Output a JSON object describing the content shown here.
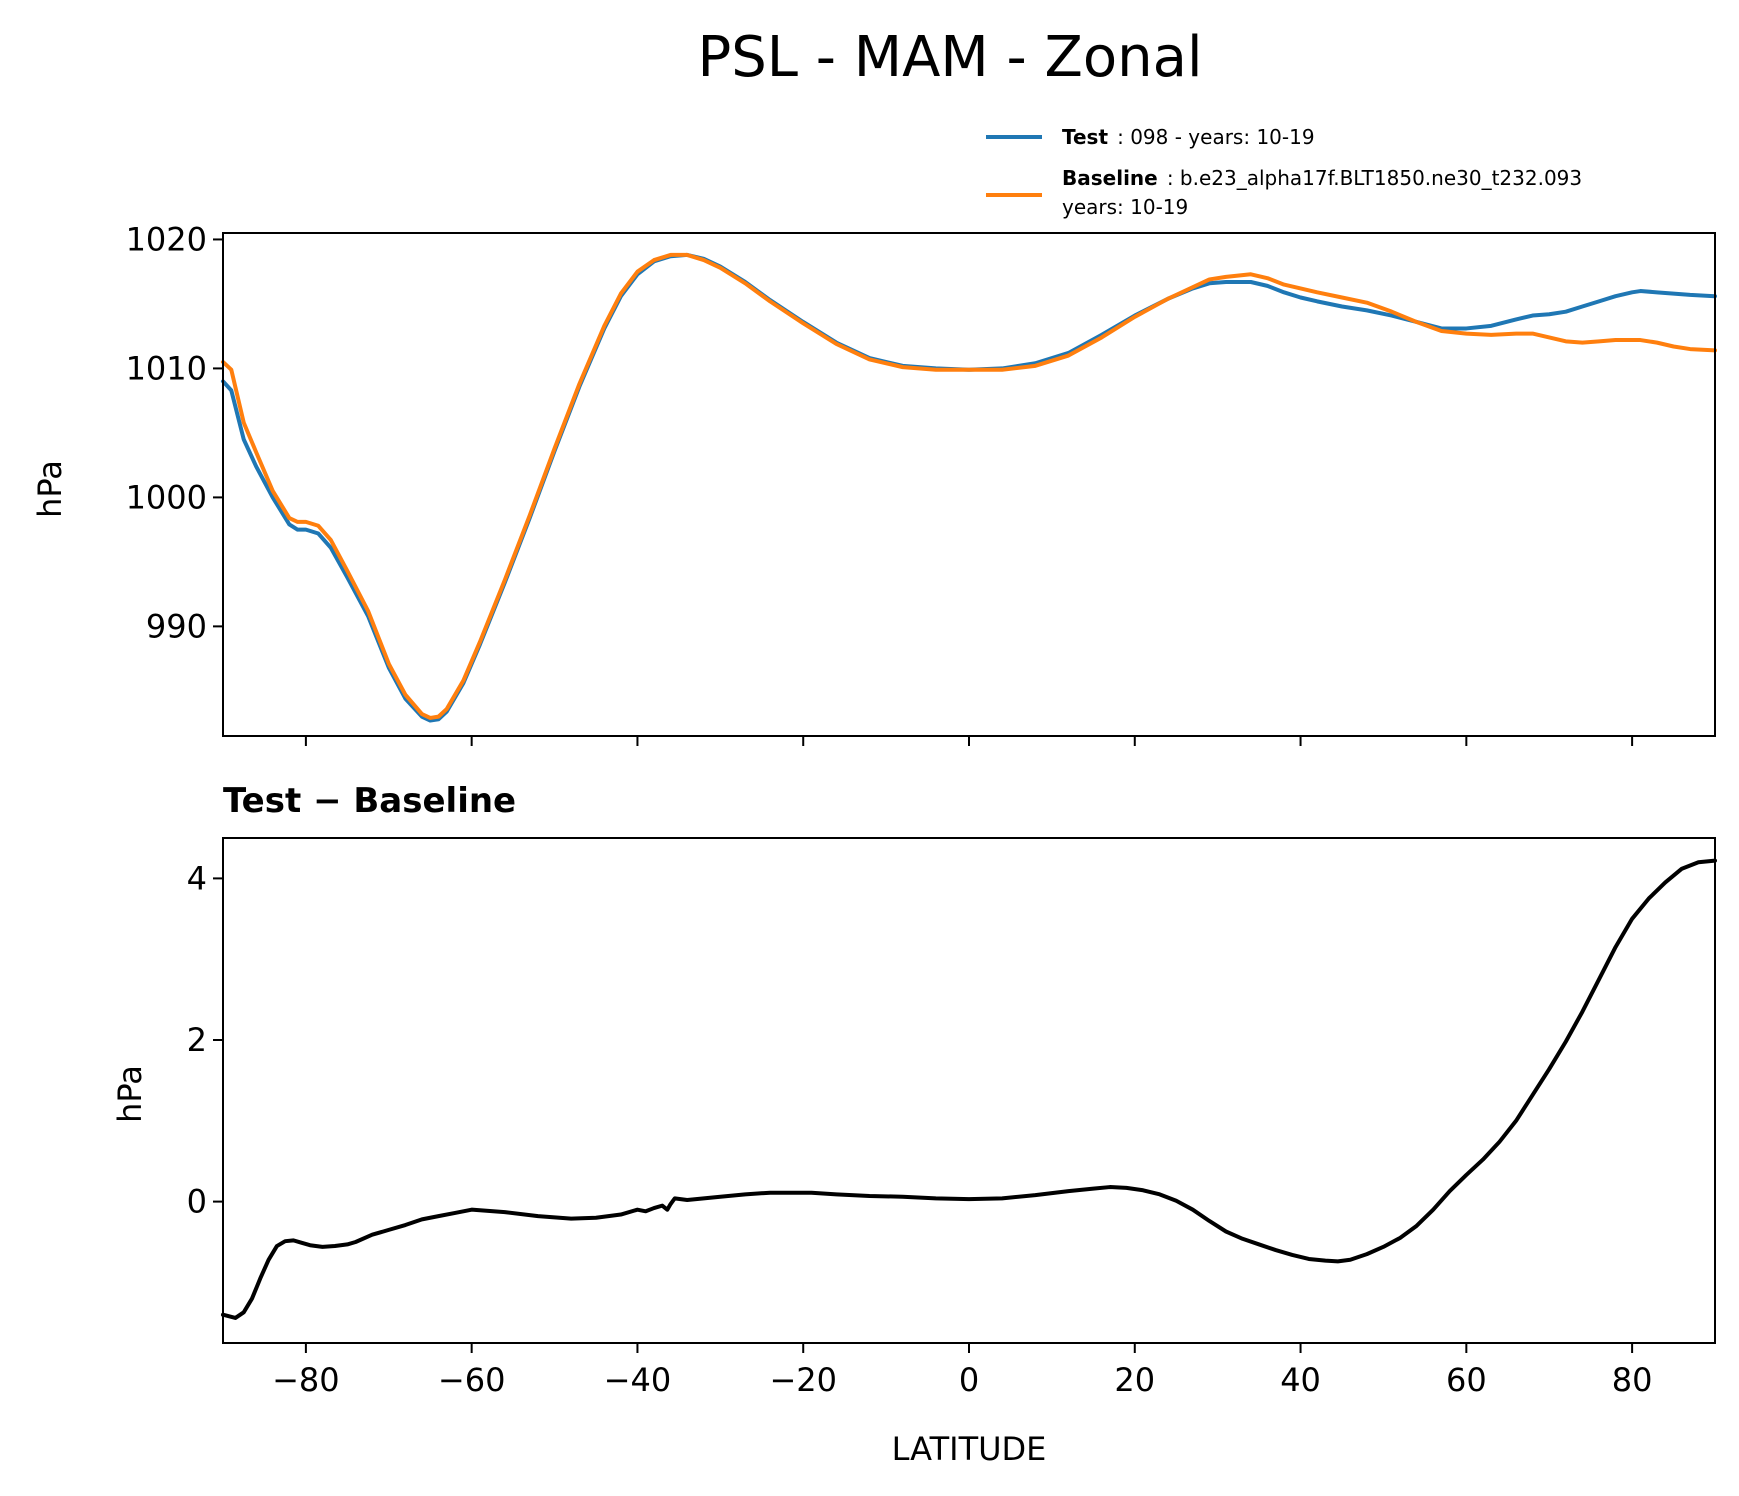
{
  "chart_data": [
    {
      "type": "line",
      "title": "PSL - MAM - Zonal",
      "xlabel": "",
      "ylabel": "hPa",
      "xlim": [
        -90,
        90
      ],
      "ylim": [
        981.5,
        1020.5
      ],
      "yticks": [
        990,
        1000,
        1010,
        1020
      ],
      "ytick_labels": [
        "990",
        "1000",
        "1010",
        "1020"
      ],
      "xticks": [
        -80,
        -60,
        -40,
        -20,
        0,
        20,
        40,
        60,
        80
      ],
      "legend": {
        "placement": "above-top-right",
        "entries": [
          {
            "bold": "Test",
            "text": ": 098 - years: 10-19",
            "text2": ""
          },
          {
            "bold": "Baseline",
            "text": ": b.e23_alpha17f.BLT1850.ne30_t232.093",
            "text2": "years: 10-19"
          }
        ]
      },
      "series": [
        {
          "name": "Test",
          "color": "#1f77b4",
          "x": [
            -90,
            -89,
            -87.5,
            -86,
            -84,
            -82,
            -81,
            -80,
            -78.5,
            -77,
            -75,
            -72.5,
            -70,
            -68,
            -66,
            -65,
            -64,
            -63,
            -61,
            -59,
            -56,
            -53,
            -50,
            -47,
            -44,
            -42,
            -40,
            -38,
            -36,
            -34,
            -32,
            -30,
            -27,
            -24,
            -20,
            -16,
            -12,
            -8,
            -4,
            0,
            4,
            8,
            12,
            16,
            20,
            24,
            27,
            29,
            31,
            34,
            36,
            38,
            40,
            42,
            45,
            48,
            51,
            54,
            57,
            60,
            63,
            66,
            68,
            70,
            72,
            74,
            76,
            78,
            80,
            81,
            83,
            85,
            87,
            90
          ],
          "values": [
            1009.0,
            1008.3,
            1004.5,
            1002.4,
            1000.0,
            997.9,
            997.5,
            997.5,
            997.2,
            996.1,
            993.8,
            990.8,
            986.8,
            984.4,
            983.0,
            982.7,
            982.8,
            983.4,
            985.6,
            988.6,
            993.4,
            998.4,
            1003.6,
            1008.6,
            1013.1,
            1015.6,
            1017.3,
            1018.3,
            1018.7,
            1018.8,
            1018.5,
            1017.9,
            1016.7,
            1015.3,
            1013.6,
            1012.0,
            1010.8,
            1010.2,
            1010.0,
            1009.9,
            1010.0,
            1010.4,
            1011.2,
            1012.6,
            1014.1,
            1015.4,
            1016.2,
            1016.6,
            1016.7,
            1016.7,
            1016.4,
            1015.9,
            1015.5,
            1015.2,
            1014.8,
            1014.5,
            1014.1,
            1013.6,
            1013.1,
            1013.1,
            1013.3,
            1013.8,
            1014.1,
            1014.2,
            1014.4,
            1014.8,
            1015.2,
            1015.6,
            1015.9,
            1016.0,
            1015.9,
            1015.8,
            1015.7,
            1015.6
          ]
        },
        {
          "name": "Baseline",
          "color": "#ff7f0e",
          "x": [
            -90,
            -89,
            -87.5,
            -86,
            -84,
            -82,
            -81,
            -80,
            -78.5,
            -77,
            -75,
            -72.5,
            -70,
            -68,
            -66,
            -65,
            -64,
            -63,
            -61,
            -59,
            -56,
            -53,
            -50,
            -47,
            -44,
            -42,
            -40,
            -38,
            -36,
            -34,
            -32,
            -30,
            -27,
            -24,
            -20,
            -16,
            -12,
            -8,
            -4,
            0,
            4,
            8,
            12,
            16,
            20,
            24,
            27,
            29,
            31,
            34,
            36,
            38,
            40,
            42,
            45,
            48,
            51,
            54,
            57,
            60,
            63,
            66,
            68,
            70,
            72,
            74,
            76,
            78,
            80,
            81,
            83,
            85,
            87,
            90
          ],
          "values": [
            1010.5,
            1009.9,
            1005.8,
            1003.5,
            1000.5,
            998.4,
            998.1,
            998.1,
            997.8,
            996.7,
            994.3,
            991.2,
            987.1,
            984.7,
            983.2,
            982.9,
            983.0,
            983.6,
            985.8,
            988.8,
            993.6,
            998.6,
            1003.8,
            1008.8,
            1013.3,
            1015.8,
            1017.5,
            1018.4,
            1018.8,
            1018.8,
            1018.4,
            1017.8,
            1016.6,
            1015.2,
            1013.5,
            1011.9,
            1010.7,
            1010.1,
            1009.9,
            1009.9,
            1009.9,
            1010.2,
            1011.0,
            1012.4,
            1014.0,
            1015.4,
            1016.3,
            1016.9,
            1017.1,
            1017.3,
            1017.0,
            1016.5,
            1016.2,
            1015.9,
            1015.5,
            1015.1,
            1014.4,
            1013.6,
            1012.9,
            1012.7,
            1012.6,
            1012.7,
            1012.7,
            1012.4,
            1012.1,
            1012.0,
            1012.1,
            1012.2,
            1012.2,
            1012.2,
            1012.0,
            1011.7,
            1011.5,
            1011.4
          ]
        }
      ]
    },
    {
      "type": "line",
      "title": "Test − Baseline",
      "xlabel": "LATITUDE",
      "ylabel": "hPa",
      "xlim": [
        -90,
        90
      ],
      "ylim": [
        -1.75,
        4.5
      ],
      "yticks": [
        0,
        2,
        4
      ],
      "ytick_labels": [
        "0",
        "2",
        "4"
      ],
      "xticks": [
        -80,
        -60,
        -40,
        -20,
        0,
        20,
        40,
        60,
        80
      ],
      "xtick_labels": [
        "−80",
        "−60",
        "−40",
        "−20",
        "0",
        "20",
        "40",
        "60",
        "80"
      ],
      "series": [
        {
          "name": "Test − Baseline",
          "color": "#000000",
          "x": [
            -90,
            -88.5,
            -87.5,
            -86.5,
            -85.5,
            -84.5,
            -83.5,
            -82.5,
            -81.5,
            -80.5,
            -79.5,
            -78,
            -76.5,
            -75,
            -74,
            -72,
            -70,
            -68,
            -66,
            -64,
            -62,
            -60,
            -56,
            -52,
            -48,
            -45,
            -42,
            -40,
            -39,
            -38,
            -37,
            -36.4,
            -36,
            -35.5,
            -34,
            -32,
            -30,
            -27,
            -24,
            -21,
            -19,
            -16,
            -12,
            -8,
            -4,
            0,
            4,
            8,
            12,
            15,
            17,
            19,
            21,
            23,
            25,
            27,
            29,
            31,
            33,
            35,
            37,
            39,
            41,
            43,
            44.5,
            46,
            48,
            50,
            52,
            54,
            56,
            58,
            60,
            62,
            64,
            66,
            68,
            70,
            72,
            74,
            76,
            78,
            80,
            82,
            84,
            86,
            88,
            90
          ],
          "values": [
            -1.4,
            -1.44,
            -1.37,
            -1.2,
            -0.95,
            -0.72,
            -0.55,
            -0.49,
            -0.48,
            -0.51,
            -0.54,
            -0.56,
            -0.55,
            -0.53,
            -0.5,
            -0.41,
            -0.35,
            -0.29,
            -0.22,
            -0.18,
            -0.14,
            -0.1,
            -0.13,
            -0.18,
            -0.21,
            -0.2,
            -0.16,
            -0.1,
            -0.12,
            -0.08,
            -0.05,
            -0.1,
            -0.03,
            0.04,
            0.02,
            0.04,
            0.06,
            0.09,
            0.11,
            0.11,
            0.11,
            0.09,
            0.07,
            0.06,
            0.04,
            0.03,
            0.04,
            0.08,
            0.13,
            0.16,
            0.18,
            0.17,
            0.14,
            0.09,
            0.01,
            -0.1,
            -0.24,
            -0.37,
            -0.46,
            -0.53,
            -0.6,
            -0.66,
            -0.71,
            -0.73,
            -0.74,
            -0.72,
            -0.65,
            -0.56,
            -0.45,
            -0.3,
            -0.1,
            0.13,
            0.33,
            0.52,
            0.74,
            1.0,
            1.32,
            1.64,
            1.98,
            2.35,
            2.75,
            3.15,
            3.5,
            3.75,
            3.95,
            4.12,
            4.2,
            4.22
          ]
        }
      ]
    }
  ]
}
